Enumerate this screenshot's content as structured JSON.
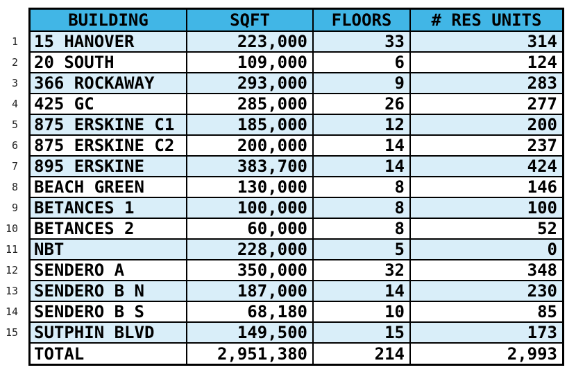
{
  "table": {
    "columns": [
      "BUILDING",
      "SQFT",
      "FLOORS",
      "# RES UNITS"
    ],
    "rows": [
      {
        "num": "1",
        "building": "15 HANOVER",
        "sqft": "223,000",
        "floors": "33",
        "res_units": "314"
      },
      {
        "num": "2",
        "building": "20 SOUTH",
        "sqft": "109,000",
        "floors": "6",
        "res_units": "124"
      },
      {
        "num": "3",
        "building": "366 ROCKAWAY",
        "sqft": "293,000",
        "floors": "9",
        "res_units": "283"
      },
      {
        "num": "4",
        "building": "425 GC",
        "sqft": "285,000",
        "floors": "26",
        "res_units": "277"
      },
      {
        "num": "5",
        "building": "875 ERSKINE C1",
        "sqft": "185,000",
        "floors": "12",
        "res_units": "200"
      },
      {
        "num": "6",
        "building": "875 ERSKINE C2",
        "sqft": "200,000",
        "floors": "14",
        "res_units": "237"
      },
      {
        "num": "7",
        "building": "895 ERSKINE",
        "sqft": "383,700",
        "floors": "14",
        "res_units": "424"
      },
      {
        "num": "8",
        "building": "BEACH GREEN",
        "sqft": "130,000",
        "floors": "8",
        "res_units": "146"
      },
      {
        "num": "9",
        "building": "BETANCES 1",
        "sqft": "100,000",
        "floors": "8",
        "res_units": "100"
      },
      {
        "num": "10",
        "building": "BETANCES 2",
        "sqft": "60,000",
        "floors": "8",
        "res_units": "52"
      },
      {
        "num": "11",
        "building": "NBT",
        "sqft": "228,000",
        "floors": "5",
        "res_units": "0"
      },
      {
        "num": "12",
        "building": "SENDERO A",
        "sqft": "350,000",
        "floors": "32",
        "res_units": "348"
      },
      {
        "num": "13",
        "building": "SENDERO B N",
        "sqft": "187,000",
        "floors": "14",
        "res_units": "230"
      },
      {
        "num": "14",
        "building": "SENDERO B S",
        "sqft": "68,180",
        "floors": "10",
        "res_units": "85"
      },
      {
        "num": "15",
        "building": "SUTPHIN BLVD",
        "sqft": "149,500",
        "floors": "15",
        "res_units": "173"
      }
    ],
    "total": {
      "label": "TOTAL",
      "sqft": "2,951,380",
      "floors": "214",
      "res_units": "2,993"
    }
  },
  "colors": {
    "header_bg": "#41b6e6",
    "row_alt_bg": "#d9eef9",
    "row_bg": "#ffffff",
    "border": "#000000",
    "text": "#000000",
    "gutter_text": "#222222"
  }
}
